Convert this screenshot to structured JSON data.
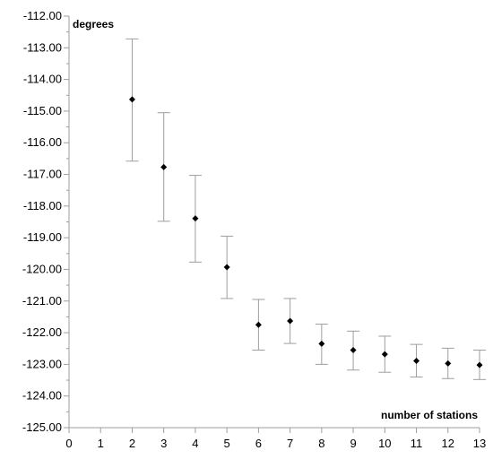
{
  "chart_data": {
    "type": "scatter",
    "ylabel": "degrees",
    "xlabel": "number of stations",
    "xlim": [
      0,
      13
    ],
    "ylim": [
      -125,
      -112
    ],
    "x_ticks": [
      0,
      1,
      2,
      3,
      4,
      5,
      6,
      7,
      8,
      9,
      10,
      11,
      12,
      13
    ],
    "y_ticks": [
      -112,
      -113,
      -114,
      -115,
      -116,
      -117,
      -118,
      -119,
      -120,
      -121,
      -122,
      -123,
      -124,
      -125
    ],
    "y_minor_step": 0.5,
    "grid": false,
    "series": [
      {
        "x": [
          2,
          3,
          4,
          5,
          6,
          7,
          8,
          9,
          10,
          11,
          12,
          13
        ],
        "y": [
          -114.63,
          -116.77,
          -118.39,
          -119.93,
          -121.75,
          -121.63,
          -122.35,
          -122.55,
          -122.68,
          -122.89,
          -122.97,
          -123.02
        ],
        "err_upper": [
          -112.72,
          -115.05,
          -117.03,
          -118.95,
          -120.95,
          -120.92,
          -121.73,
          -121.95,
          -122.11,
          -122.37,
          -122.49,
          -122.55
        ],
        "err_lower": [
          -116.58,
          -118.48,
          -119.77,
          -120.92,
          -122.55,
          -122.34,
          -123.0,
          -123.18,
          -123.25,
          -123.4,
          -123.45,
          -123.48
        ]
      }
    ],
    "colors": {
      "marker": "#000000",
      "errorbar": "#9e9e9e",
      "axis": "#9e9e9e",
      "text": "#000000"
    }
  }
}
